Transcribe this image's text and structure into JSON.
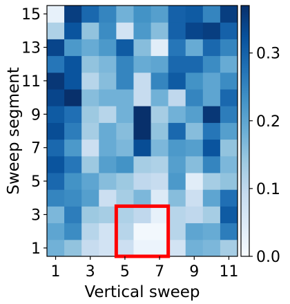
{
  "chart_data": {
    "type": "heatmap",
    "xlabel": "Vertical sweep",
    "ylabel": "Sweep segment",
    "x_values": [
      1,
      2,
      3,
      4,
      5,
      6,
      7,
      8,
      9,
      10,
      11
    ],
    "y_values": [
      1,
      2,
      3,
      4,
      5,
      6,
      7,
      8,
      9,
      10,
      11,
      12,
      13,
      14,
      15
    ],
    "x_tick_labels": [
      "1",
      "3",
      "5",
      "7",
      "9",
      "11"
    ],
    "y_tick_labels": [
      "1",
      "3",
      "5",
      "7",
      "9",
      "11",
      "13",
      "15"
    ],
    "colorbar": {
      "range": [
        0.0,
        0.37
      ],
      "tick_labels": [
        "0.0",
        "0.1",
        "0.2",
        "0.3"
      ],
      "colormap": "Blues"
    },
    "values": [
      [
        0.18,
        0.15,
        0.09,
        0.07,
        0.08,
        0.02,
        0.02,
        0.07,
        0.18,
        0.17,
        0.13
      ],
      [
        0.2,
        0.24,
        0.11,
        0.07,
        0.11,
        0.01,
        0.01,
        0.11,
        0.2,
        0.19,
        0.26
      ],
      [
        0.17,
        0.26,
        0.14,
        0.13,
        0.12,
        0.1,
        0.03,
        0.11,
        0.1,
        0.13,
        0.31
      ],
      [
        0.25,
        0.24,
        0.21,
        0.08,
        0.13,
        0.17,
        0.05,
        0.16,
        0.08,
        0.2,
        0.28
      ],
      [
        0.29,
        0.23,
        0.2,
        0.16,
        0.14,
        0.1,
        0.09,
        0.22,
        0.04,
        0.13,
        0.15
      ],
      [
        0.32,
        0.27,
        0.14,
        0.21,
        0.23,
        0.13,
        0.12,
        0.21,
        0.16,
        0.25,
        0.17
      ],
      [
        0.29,
        0.22,
        0.08,
        0.19,
        0.17,
        0.33,
        0.17,
        0.22,
        0.21,
        0.32,
        0.15
      ],
      [
        0.33,
        0.26,
        0.13,
        0.19,
        0.16,
        0.37,
        0.15,
        0.29,
        0.16,
        0.27,
        0.21
      ],
      [
        0.31,
        0.28,
        0.14,
        0.11,
        0.18,
        0.37,
        0.13,
        0.18,
        0.21,
        0.36,
        0.26
      ],
      [
        0.34,
        0.37,
        0.16,
        0.18,
        0.18,
        0.09,
        0.18,
        0.1,
        0.25,
        0.2,
        0.29
      ],
      [
        0.36,
        0.32,
        0.11,
        0.16,
        0.25,
        0.09,
        0.25,
        0.31,
        0.23,
        0.2,
        0.24
      ],
      [
        0.27,
        0.32,
        0.15,
        0.17,
        0.25,
        0.19,
        0.2,
        0.29,
        0.29,
        0.24,
        0.19
      ],
      [
        0.34,
        0.22,
        0.19,
        0.22,
        0.31,
        0.16,
        0.04,
        0.27,
        0.19,
        0.29,
        0.25
      ],
      [
        0.12,
        0.32,
        0.15,
        0.24,
        0.07,
        0.22,
        0.16,
        0.3,
        0.34,
        0.35,
        0.3
      ],
      [
        0.03,
        0.35,
        0.29,
        0.25,
        0.18,
        0.23,
        0.21,
        0.3,
        0.31,
        0.25,
        0.35
      ]
    ],
    "highlight": {
      "x_from": 5,
      "x_to": 7,
      "y_from": 1,
      "y_to": 3,
      "color": "#ff0000"
    }
  }
}
